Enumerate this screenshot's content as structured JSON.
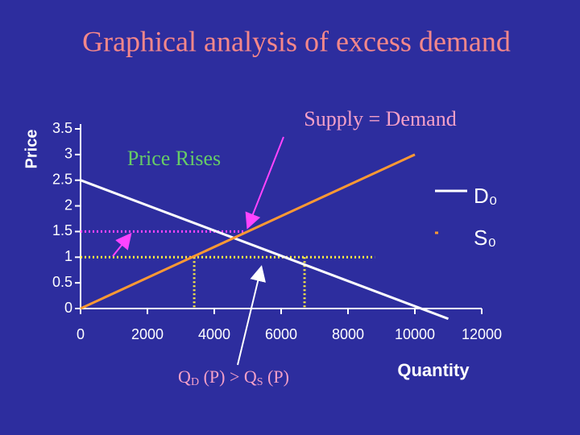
{
  "chart_data": {
    "type": "line",
    "title": "Graphical analysis of excess demand",
    "x_label": "Quantity",
    "y_label": "Price",
    "xlim": [
      0,
      12000
    ],
    "ylim": [
      0,
      3.5
    ],
    "xticks": [
      0,
      2000,
      4000,
      6000,
      8000,
      10000,
      12000
    ],
    "yticks": [
      0,
      0.5,
      1,
      1.5,
      2,
      2.5,
      3,
      3.5
    ],
    "legend": "right",
    "series": [
      {
        "name": "D₀",
        "color": "#ffffff",
        "x": [
          0,
          11000
        ],
        "values": [
          2.5,
          -0.2
        ]
      },
      {
        "name": "S₀",
        "color": "#ff9933",
        "x": [
          0,
          10000
        ],
        "values": [
          0,
          3
        ]
      }
    ],
    "guides": [
      {
        "color": "#ff44ff",
        "x": [
          0,
          4900
        ],
        "values": [
          1.5,
          1.5
        ]
      },
      {
        "color": "#ffee44",
        "x": [
          0,
          8800
        ],
        "values": [
          1,
          1
        ]
      },
      {
        "color": "#ffee44",
        "x": [
          3400,
          3400
        ],
        "values": [
          1,
          0
        ]
      },
      {
        "color": "#ffee44",
        "x": [
          6700,
          6700
        ],
        "values": [
          1,
          0
        ]
      }
    ],
    "annotations": {
      "equilibrium": "Supply = Demand",
      "price_rises": "Price Rises",
      "inequality": [
        "Q",
        "D",
        " (P)  > Q",
        "S",
        " (P)"
      ]
    }
  }
}
